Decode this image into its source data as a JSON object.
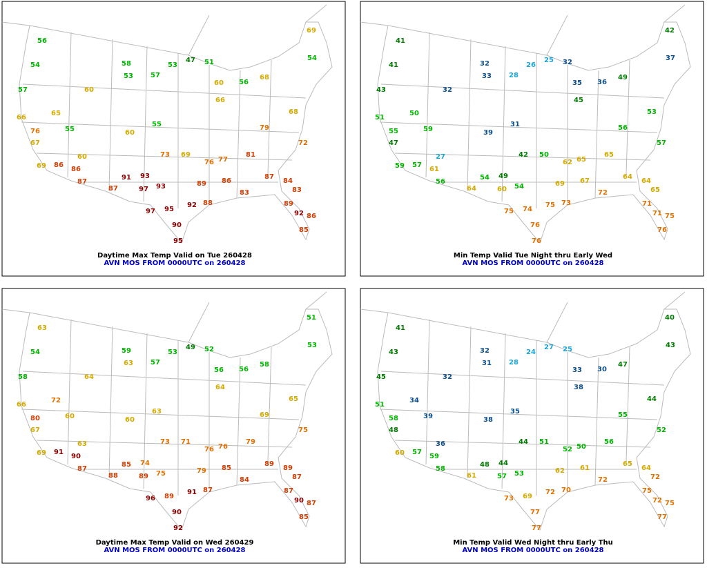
{
  "color_scale": [
    {
      "min": 0,
      "color": "#19a5d8"
    },
    {
      "min": 30,
      "color": "#0d4f8b"
    },
    {
      "min": 40,
      "color": "#007a00"
    },
    {
      "min": 50,
      "color": "#00b400"
    },
    {
      "min": 60,
      "color": "#d2aa00"
    },
    {
      "min": 70,
      "color": "#e07000"
    },
    {
      "min": 80,
      "color": "#d23c00"
    },
    {
      "min": 90,
      "color": "#8b0000"
    }
  ],
  "panels": [
    {
      "title": "Daytime Max Temp Valid on Tue 260428",
      "subtitle": "AVN MOS FROM 0000UTC on 260428",
      "values": [
        56,
        54,
        57,
        66,
        67,
        69,
        76,
        65,
        55,
        86,
        86,
        87,
        60,
        60,
        87,
        58,
        53,
        60,
        91,
        93,
        97,
        93,
        97,
        95,
        95,
        90,
        92,
        89,
        88,
        86,
        83,
        81,
        87,
        84,
        83,
        89,
        92,
        85,
        86,
        72,
        69,
        54,
        68,
        56,
        51,
        47,
        53,
        57,
        55,
        73,
        69,
        76,
        77,
        79,
        68,
        60,
        66
      ]
    },
    {
      "title": "Min Temp Valid Tue Night thru Early Wed",
      "subtitle": "AVN MOS FROM 0000UTC on 260428",
      "values": [
        41,
        41,
        43,
        51,
        47,
        59,
        55,
        50,
        59,
        57,
        61,
        56,
        27,
        32,
        64,
        32,
        33,
        39,
        54,
        49,
        60,
        54,
        75,
        74,
        76,
        76,
        75,
        69,
        73,
        67,
        72,
        65,
        64,
        64,
        65,
        71,
        71,
        76,
        75,
        57,
        42,
        37,
        53,
        36,
        32,
        25,
        26,
        28,
        31,
        42,
        50,
        62,
        65,
        56,
        49,
        35,
        45
      ]
    },
    {
      "title": "Daytime Max Temp Valid on Wed 260429",
      "subtitle": "AVN MOS FROM 0000UTC on 260428",
      "values": [
        63,
        54,
        58,
        66,
        67,
        69,
        80,
        72,
        60,
        91,
        90,
        87,
        63,
        64,
        88,
        59,
        63,
        60,
        85,
        74,
        89,
        75,
        96,
        89,
        92,
        90,
        91,
        79,
        87,
        85,
        84,
        79,
        89,
        89,
        87,
        87,
        90,
        85,
        87,
        75,
        51,
        53,
        65,
        56,
        52,
        49,
        53,
        57,
        63,
        73,
        71,
        76,
        76,
        69,
        58,
        56,
        64
      ]
    },
    {
      "title": "Min Temp Valid Wed Night thru Early Thu",
      "subtitle": "AVN MOS FROM 0000UTC on 260428",
      "values": [
        41,
        43,
        45,
        51,
        48,
        60,
        58,
        34,
        39,
        57,
        59,
        58,
        36,
        32,
        61,
        32,
        31,
        38,
        48,
        44,
        57,
        53,
        73,
        69,
        77,
        77,
        72,
        62,
        70,
        61,
        72,
        56,
        65,
        64,
        72,
        75,
        72,
        77,
        75,
        52,
        40,
        43,
        44,
        30,
        25,
        27,
        24,
        28,
        35,
        44,
        51,
        52,
        50,
        55,
        47,
        33,
        38
      ]
    }
  ]
}
